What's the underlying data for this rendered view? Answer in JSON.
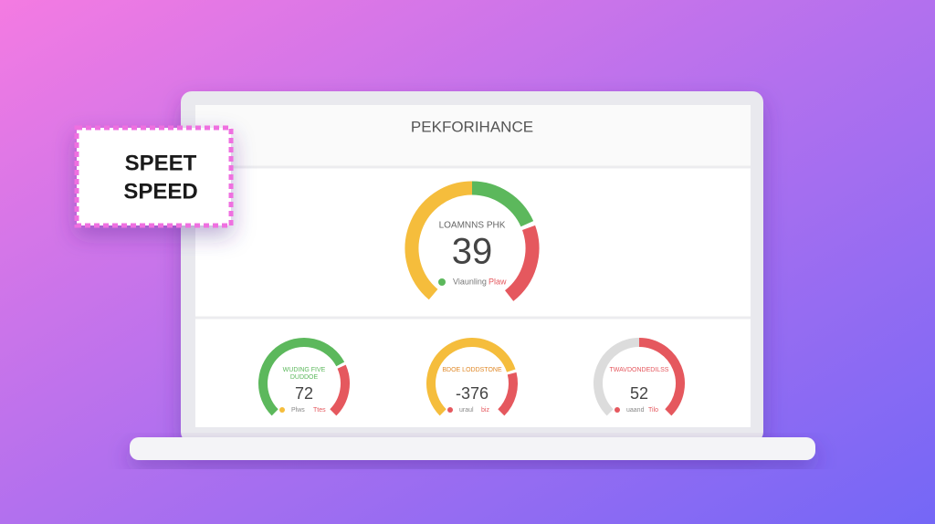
{
  "badge": {
    "lines": [
      "SPEET",
      "SPEED"
    ]
  },
  "header": {
    "title": "PEKFORIHANCE"
  },
  "main_gauge": {
    "label": "LOAMNNS PHK",
    "value": "39",
    "legend": [
      "Viaunling",
      "Plaw"
    ]
  },
  "gauges": [
    {
      "label_lines": [
        "WUDING FIVE",
        "DUDDOE"
      ],
      "value": "72",
      "legend": [
        "Plws",
        "Ttes"
      ]
    },
    {
      "label_lines": [
        "BDOE LODDSTONE"
      ],
      "value": "-376",
      "legend": [
        "uraul",
        "biz"
      ]
    },
    {
      "label_lines": [
        "TWAVDONDEDILSS"
      ],
      "value": "52",
      "legend": [
        "uaand",
        "Tilo"
      ]
    }
  ]
}
